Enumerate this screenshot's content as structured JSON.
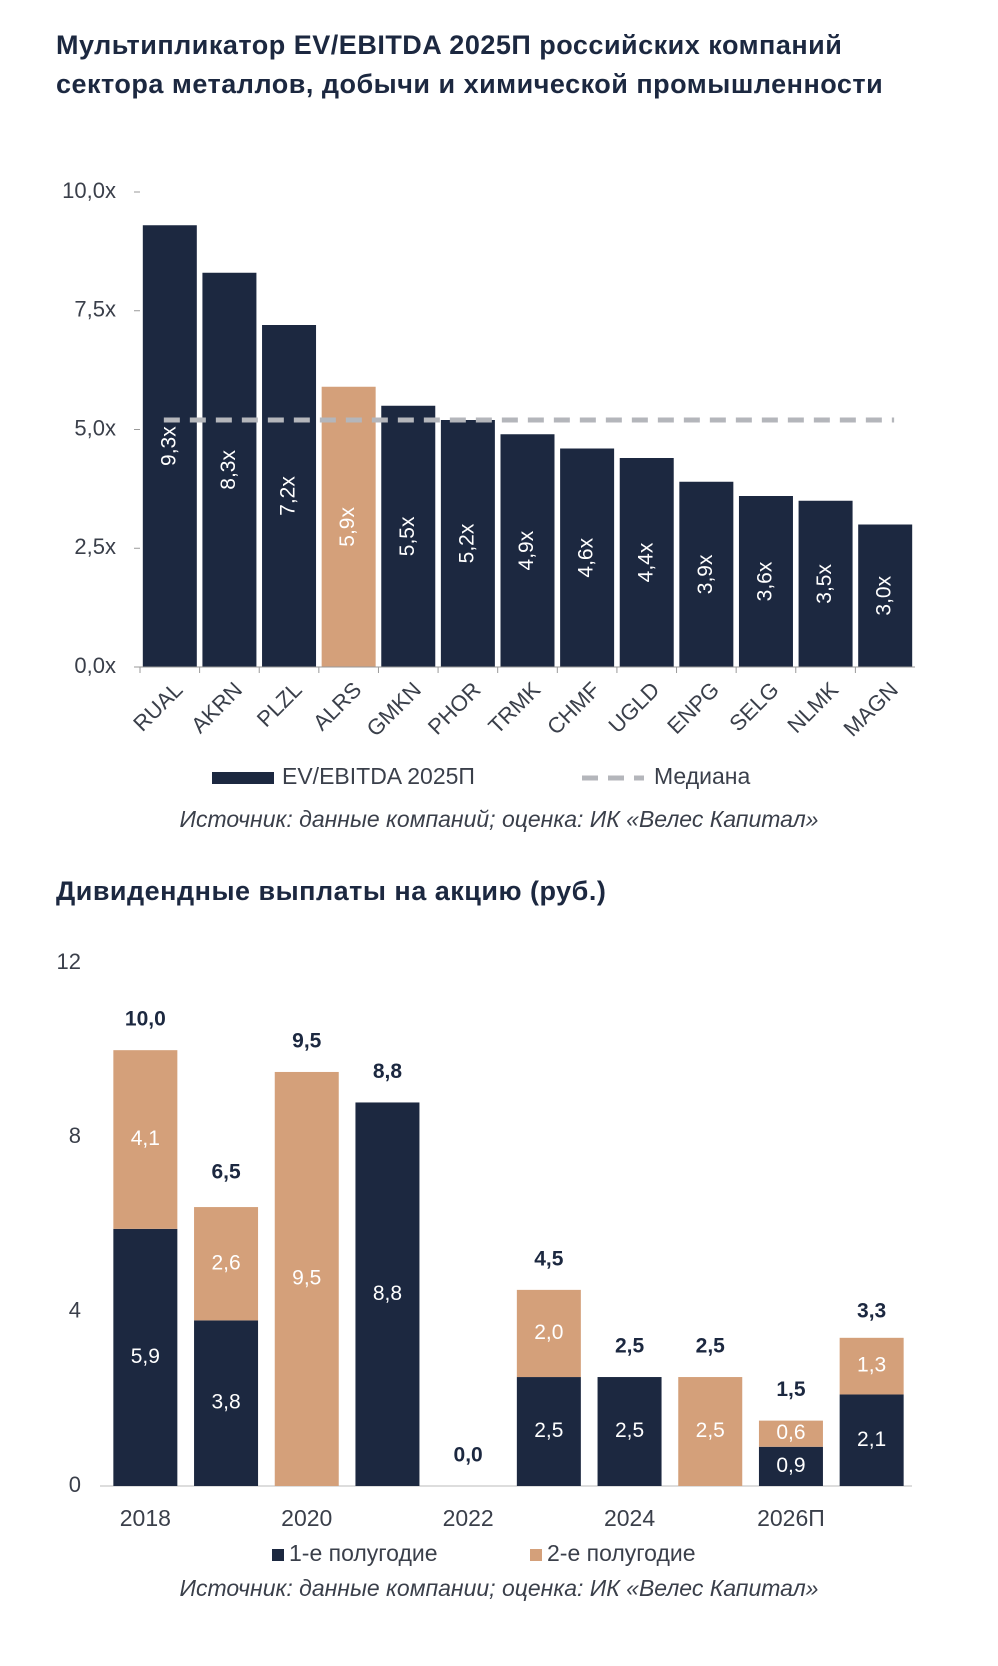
{
  "chart_data": [
    {
      "type": "bar",
      "title": "Мультипликатор EV/EBITDA 2025П российских компаний сектора металлов, добычи и химической промышленности",
      "categories": [
        "RUAL",
        "AKRN",
        "PLZL",
        "ALRS",
        "GMKN",
        "PHOR",
        "TRMK",
        "CHMF",
        "UGLD",
        "ENPG",
        "SELG",
        "NLMK",
        "MAGN"
      ],
      "series": [
        {
          "name": "EV/EBITDA 2025П",
          "color": "#1c2840",
          "values": [
            9.3,
            8.3,
            7.2,
            5.9,
            5.5,
            5.2,
            4.9,
            4.6,
            4.4,
            3.9,
            3.6,
            3.5,
            3.0
          ],
          "value_labels": [
            "9,3x",
            "8,3x",
            "7,2x",
            "5,9x",
            "5,5x",
            "5,2x",
            "4,9x",
            "4,6x",
            "4,4x",
            "3,9x",
            "3,6x",
            "3,5x",
            "3,0x"
          ],
          "bar_colors": [
            "#1c2840",
            "#1c2840",
            "#1c2840",
            "#d4a07a",
            "#1c2840",
            "#1c2840",
            "#1c2840",
            "#1c2840",
            "#1c2840",
            "#1c2840",
            "#1c2840",
            "#1c2840",
            "#1c2840"
          ]
        }
      ],
      "median": {
        "name": "Медиана",
        "value": 5.2,
        "color": "#b4b6bb"
      },
      "ylim": [
        0,
        10
      ],
      "yticks": [
        {
          "value": 0,
          "label": "0,0x"
        },
        {
          "value": 2.5,
          "label": "2,5x"
        },
        {
          "value": 5,
          "label": "5,0x"
        },
        {
          "value": 7.5,
          "label": "7,5x"
        },
        {
          "value": 10,
          "label": "10,0x"
        }
      ],
      "source": "Источник: данные компаний; оценка: ИК «Велес Капитал»"
    },
    {
      "type": "stacked_bar",
      "title": "Дивидендные выплаты на акцию (руб.)",
      "categories": [
        "2018",
        null,
        "2020",
        null,
        "2022",
        null,
        "2024",
        null,
        "2026П",
        null
      ],
      "series": [
        {
          "name": "1-е полугодие",
          "color": "#1c2840",
          "values": [
            5.9,
            3.8,
            0,
            8.8,
            0,
            2.5,
            2.5,
            0,
            0.9,
            2.1
          ],
          "value_labels": [
            "5,9",
            "3,8",
            null,
            "8,8",
            null,
            "2,5",
            "2,5",
            null,
            "0,9",
            "2,1"
          ]
        },
        {
          "name": "2-е полугодие",
          "color": "#d4a07a",
          "values": [
            4.1,
            2.6,
            9.5,
            0,
            0,
            2.0,
            0,
            2.5,
            0.6,
            1.3
          ],
          "value_labels": [
            "4,1",
            "2,6",
            "9,5",
            null,
            null,
            "2,0",
            null,
            "2,5",
            "0,6",
            "1,3"
          ]
        }
      ],
      "totals": [
        10.0,
        6.5,
        9.5,
        8.8,
        0.0,
        4.5,
        2.5,
        2.5,
        1.5,
        3.3
      ],
      "total_labels": [
        "10,0",
        "6,5",
        "9,5",
        "8,8",
        "0,0",
        "4,5",
        "2,5",
        "2,5",
        "1,5",
        "3,3"
      ],
      "ylim": [
        0,
        12
      ],
      "yticks": [
        0,
        4,
        8,
        12
      ],
      "source": "Источник: данные компании; оценка: ИК «Велес Капитал»"
    }
  ]
}
